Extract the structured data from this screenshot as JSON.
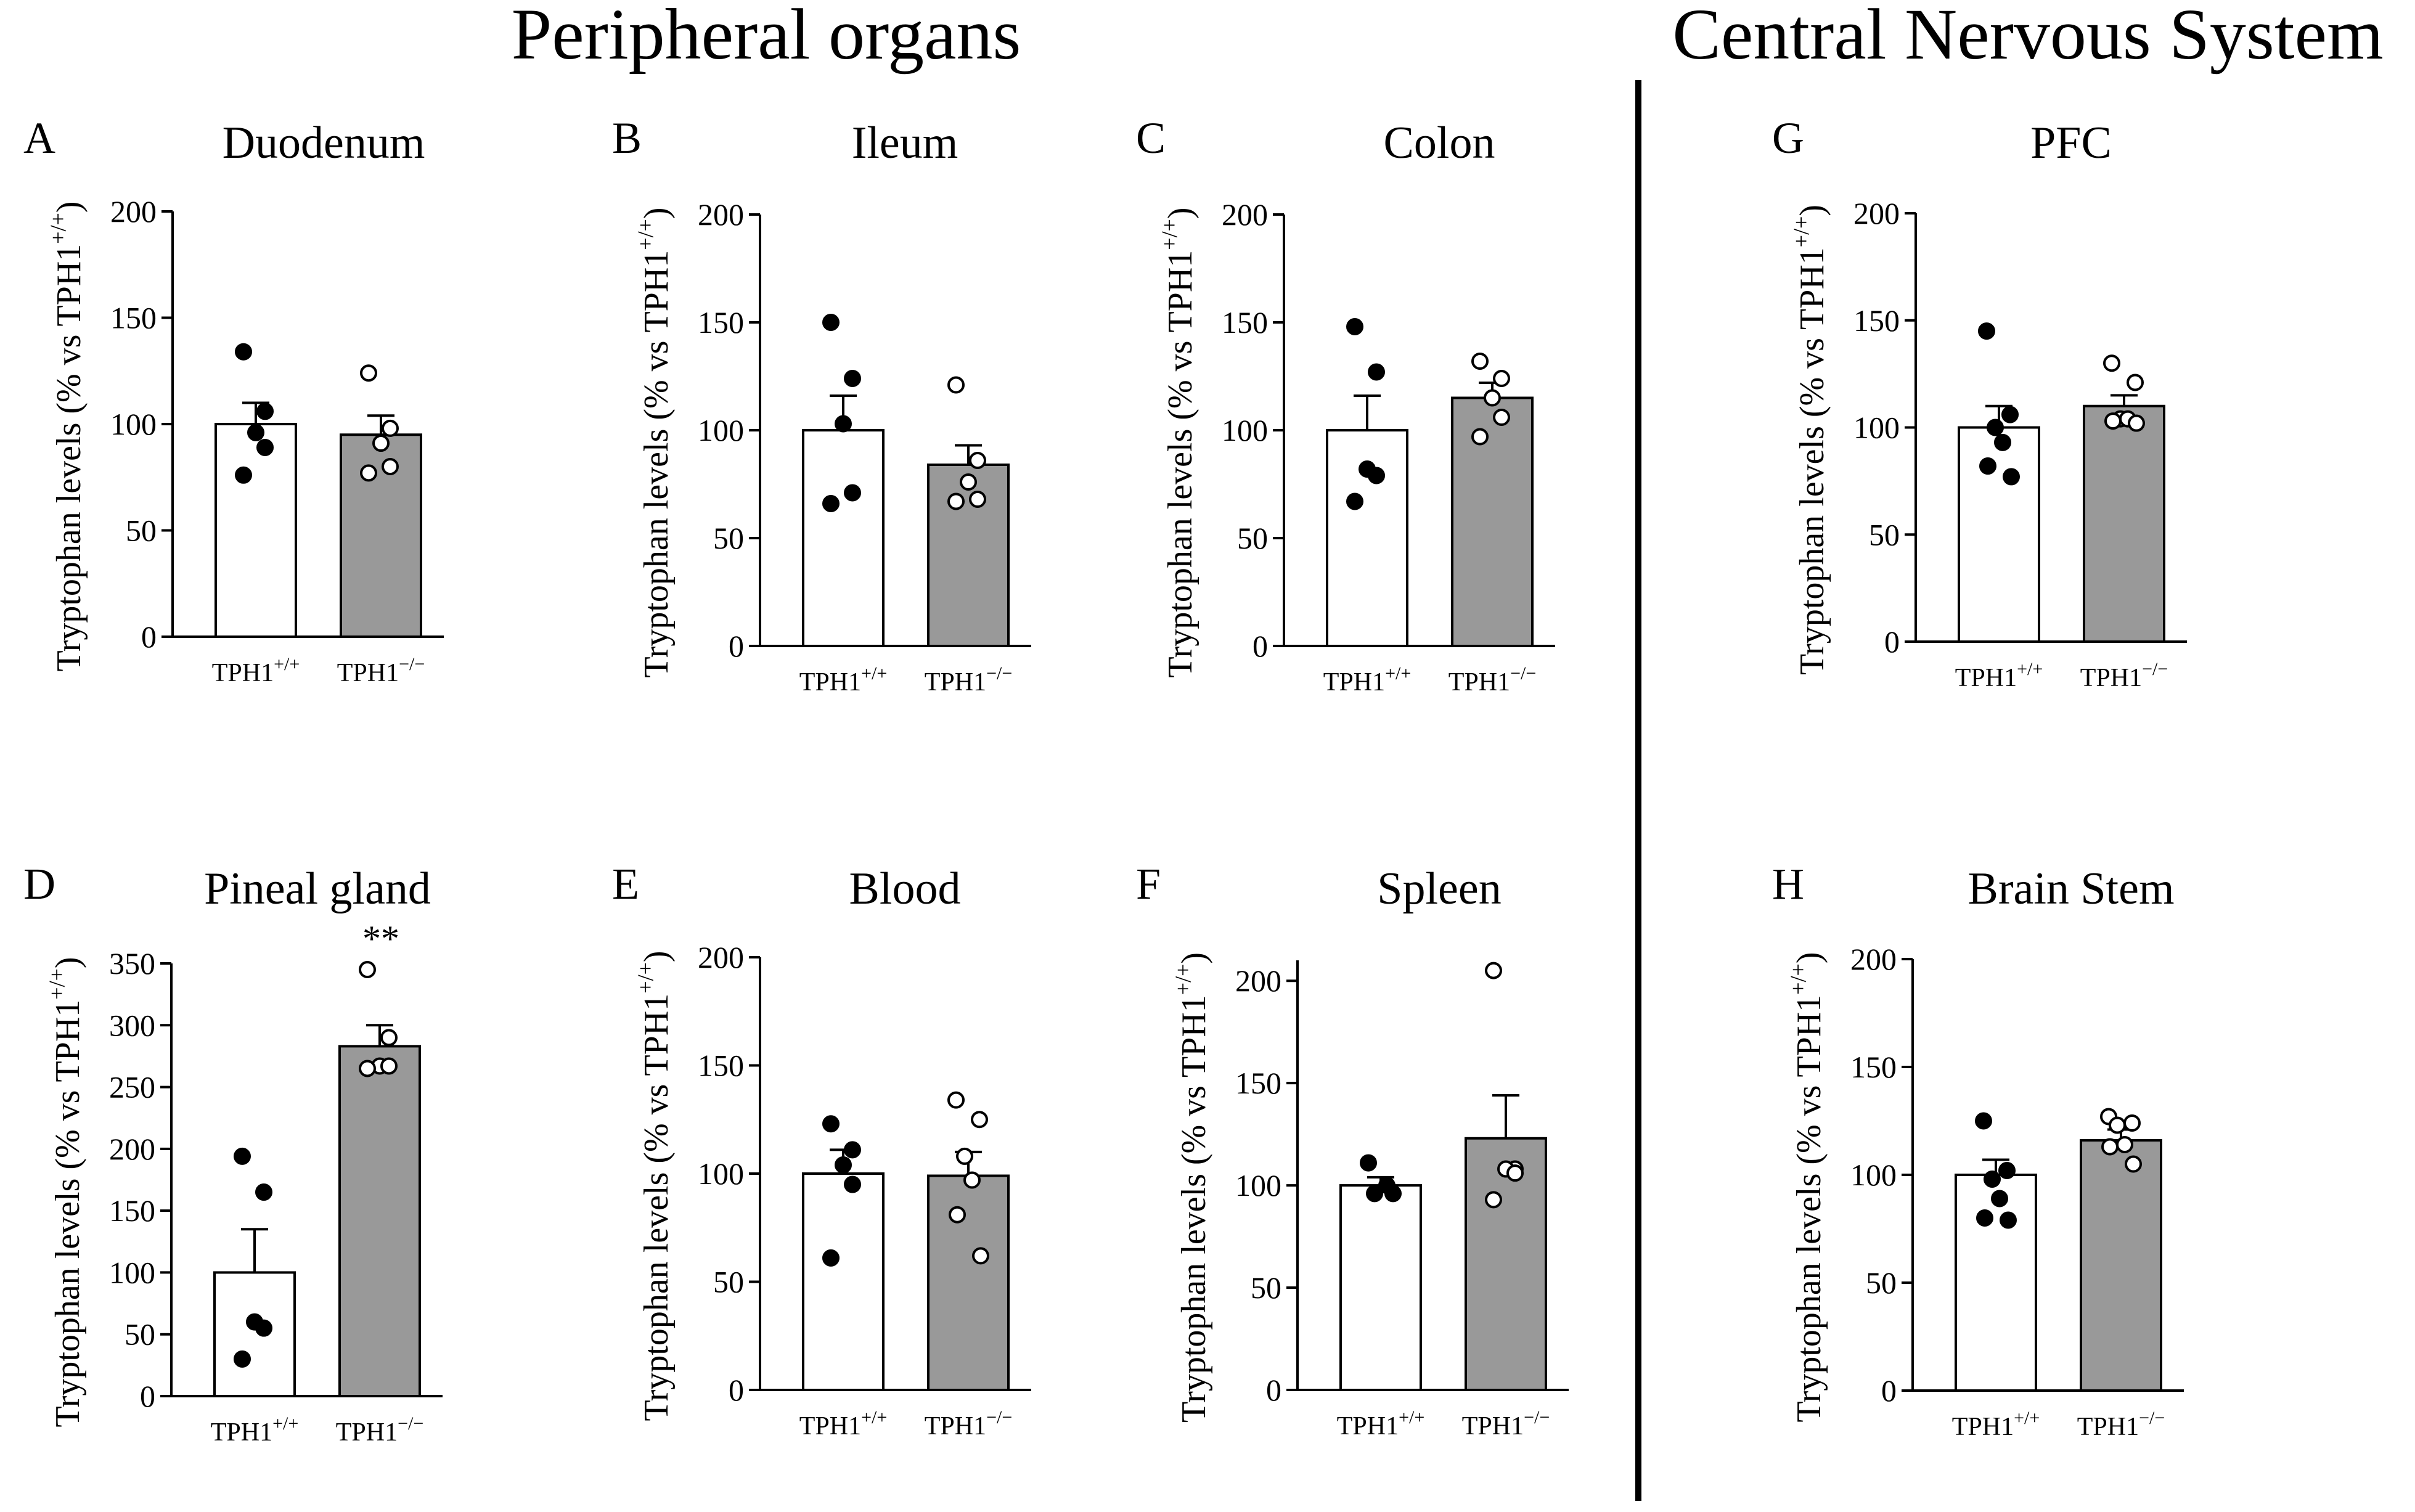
{
  "figure": {
    "section_left": "Peripheral organs",
    "section_right": "Central Nervous System",
    "ylabel_main": "Tryptophan levels (% vs TPH1",
    "ylabel_sup": "+/+",
    "ylabel_end": ")",
    "xtick_base": "TPH1",
    "wt_sup": "+/+",
    "ko_sup": "−/−",
    "colors": {
      "wt_fill": "#ffffff",
      "ko_fill": "#999999",
      "stroke": "#000000"
    }
  },
  "chart_data": [
    {
      "letter": "A",
      "title": "Duodenum",
      "type": "bar",
      "categories": [
        "TPH1+/+",
        "TPH1−/−"
      ],
      "ylim": [
        0,
        200
      ],
      "yticks": [
        0,
        50,
        100,
        150,
        200
      ],
      "values": [
        100,
        95
      ],
      "sem": [
        10,
        9
      ],
      "points": [
        [
          134,
          106,
          96,
          89,
          76
        ],
        [
          124,
          98,
          91,
          80,
          77
        ]
      ]
    },
    {
      "letter": "B",
      "title": "Ileum",
      "type": "bar",
      "categories": [
        "TPH1+/+",
        "TPH1−/−"
      ],
      "ylim": [
        0,
        200
      ],
      "yticks": [
        0,
        50,
        100,
        150,
        200
      ],
      "values": [
        100,
        84
      ],
      "sem": [
        16,
        9
      ],
      "points": [
        [
          150,
          124,
          103,
          71,
          66
        ],
        [
          121,
          86,
          76,
          68,
          67
        ]
      ]
    },
    {
      "letter": "C",
      "title": "Colon",
      "type": "bar",
      "categories": [
        "TPH1+/+",
        "TPH1−/−"
      ],
      "ylim": [
        0,
        200
      ],
      "yticks": [
        0,
        50,
        100,
        150,
        200
      ],
      "values": [
        100,
        115
      ],
      "sem": [
        16,
        7
      ],
      "points": [
        [
          148,
          127,
          82,
          79,
          67
        ],
        [
          132,
          124,
          115,
          106,
          97
        ]
      ]
    },
    {
      "letter": "G",
      "title": "PFC",
      "type": "bar",
      "categories": [
        "TPH1+/+",
        "TPH1−/−"
      ],
      "ylim": [
        0,
        200
      ],
      "yticks": [
        0,
        50,
        100,
        150,
        200
      ],
      "values": [
        100,
        110
      ],
      "sem": [
        10,
        5
      ],
      "points": [
        [
          145,
          106,
          100,
          93,
          82,
          77
        ],
        [
          130,
          121,
          104,
          104,
          103,
          102
        ]
      ]
    },
    {
      "letter": "D",
      "title": "Pineal gland",
      "type": "bar",
      "categories": [
        "TPH1+/+",
        "TPH1−/−"
      ],
      "ylim": [
        0,
        350
      ],
      "yticks": [
        0,
        50,
        100,
        150,
        200,
        250,
        300,
        350
      ],
      "values": [
        100,
        283
      ],
      "sem": [
        35,
        17
      ],
      "points": [
        [
          194,
          165,
          60,
          55,
          30
        ],
        [
          345,
          290,
          267,
          267,
          265
        ]
      ],
      "annotation": "**"
    },
    {
      "letter": "E",
      "title": "Blood",
      "type": "bar",
      "categories": [
        "TPH1+/+",
        "TPH1−/−"
      ],
      "ylim": [
        0,
        200
      ],
      "yticks": [
        0,
        50,
        100,
        150,
        200
      ],
      "values": [
        100,
        99
      ],
      "sem": [
        11,
        11
      ],
      "points": [
        [
          123,
          111,
          104,
          95,
          61
        ],
        [
          134,
          125,
          108,
          97,
          81,
          62
        ]
      ]
    },
    {
      "letter": "F",
      "title": "Spleen",
      "type": "bar",
      "categories": [
        "TPH1+/+",
        "TPH1−/−"
      ],
      "ylim": [
        0,
        210
      ],
      "yticks": [
        0,
        50,
        100,
        150,
        200
      ],
      "values": [
        100,
        123
      ],
      "sem": [
        4,
        21
      ],
      "points": [
        [
          111,
          100,
          96,
          96
        ],
        [
          205,
          108,
          108,
          106,
          93
        ]
      ]
    },
    {
      "letter": "H",
      "title": "Brain Stem",
      "type": "bar",
      "categories": [
        "TPH1+/+",
        "TPH1−/−"
      ],
      "ylim": [
        0,
        200
      ],
      "yticks": [
        0,
        50,
        100,
        150,
        200
      ],
      "values": [
        100,
        116
      ],
      "sem": [
        7,
        5
      ],
      "points": [
        [
          125,
          102,
          98,
          89,
          80,
          79
        ],
        [
          127,
          124,
          123,
          114,
          113,
          105
        ]
      ]
    }
  ]
}
